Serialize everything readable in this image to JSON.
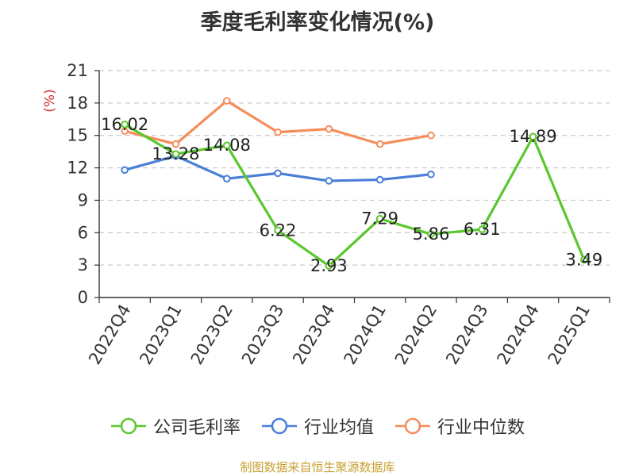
{
  "title": "季度毛利率变化情况(%)",
  "source": "制图数据来自恒生聚源数据库",
  "chart_data": {
    "type": "line",
    "title": "季度毛利率变化情况(%)",
    "ylabel": "(%)",
    "xlabel": "",
    "ylim": [
      0,
      21
    ],
    "yticks": [
      "0",
      "3",
      "6",
      "9",
      "12",
      "15",
      "18",
      "21"
    ],
    "grid": true,
    "legend": "bottom",
    "categories": [
      "2022Q4",
      "2023Q1",
      "2023Q2",
      "2023Q3",
      "2023Q4",
      "2024Q1",
      "2024Q2",
      "2024Q3",
      "2024Q4",
      "2025Q1"
    ],
    "series": [
      {
        "name": "公司毛利率",
        "color": "#5bc72e",
        "values": [
          16.02,
          13.28,
          14.08,
          6.22,
          2.93,
          7.29,
          5.86,
          6.31,
          14.89,
          3.49
        ],
        "labels": [
          "16.02",
          "13.28",
          "14.08",
          "6.22",
          "2.93",
          "7.29",
          "5.86",
          "6.31",
          "14.89",
          "3.49"
        ]
      },
      {
        "name": "行业均值",
        "color": "#4a7fd8",
        "values": [
          11.8,
          13.1,
          11.0,
          11.5,
          10.8,
          10.9,
          11.4,
          null,
          null,
          null
        ]
      },
      {
        "name": "行业中位数",
        "color": "#f58d5a",
        "values": [
          15.4,
          14.2,
          18.2,
          15.3,
          15.6,
          14.2,
          15.0,
          null,
          null,
          null
        ]
      }
    ]
  }
}
